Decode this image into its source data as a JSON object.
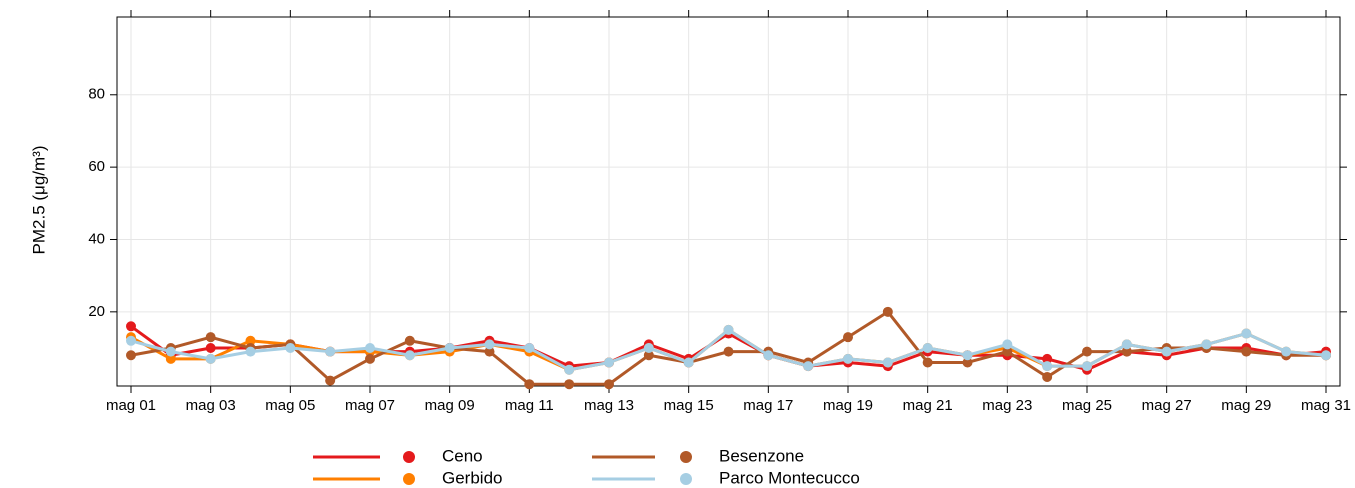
{
  "chart_data": {
    "type": "line",
    "ylabel": "PM2.5 (μg/m³)",
    "categories": [
      "mag 01",
      null,
      "mag 03",
      null,
      "mag 05",
      null,
      "mag 07",
      null,
      "mag 09",
      null,
      "mag 11",
      null,
      "mag 13",
      null,
      "mag 15",
      null,
      "mag 17",
      null,
      "mag 19",
      null,
      "mag 21",
      null,
      "mag 23",
      null,
      "mag 25",
      null,
      "mag 27",
      null,
      "mag 29",
      null,
      "mag 31"
    ],
    "series": [
      {
        "name": "Ceno",
        "color": "#e41a1c",
        "values": [
          16,
          8,
          10,
          10,
          11,
          9,
          9,
          9,
          10,
          12,
          10,
          5,
          6,
          11,
          7,
          14,
          8,
          5,
          6,
          5,
          9,
          8,
          8,
          7,
          4,
          9,
          8,
          10,
          10,
          8,
          9
        ]
      },
      {
        "name": "Gerbido",
        "color": "#ff7f00",
        "values": [
          13,
          7,
          7,
          12,
          11,
          9,
          9,
          8,
          9,
          11,
          9,
          4,
          6,
          10,
          6,
          15,
          8,
          5,
          7,
          6,
          10,
          8,
          10,
          5,
          5,
          11,
          9,
          11,
          14,
          9,
          8
        ]
      },
      {
        "name": "Besenzone",
        "color": "#b15928",
        "values": [
          8,
          10,
          13,
          10,
          11,
          1,
          7,
          12,
          10,
          9,
          0,
          0,
          0,
          8,
          6,
          9,
          9,
          6,
          13,
          20,
          6,
          6,
          9,
          2,
          9,
          9,
          10,
          10,
          9,
          8,
          8
        ]
      },
      {
        "name": "Parco Montecucco",
        "color": "#a6cee3",
        "values": [
          12,
          9,
          7,
          9,
          10,
          9,
          10,
          8,
          10,
          11,
          10,
          4,
          6,
          10,
          6,
          15,
          8,
          5,
          7,
          6,
          10,
          8,
          11,
          5,
          5,
          11,
          9,
          11,
          14,
          9,
          8
        ]
      }
    ],
    "ylim": [
      -0.5,
      101.5
    ],
    "yticks": [
      20,
      40,
      60,
      80
    ],
    "grid": true
  }
}
